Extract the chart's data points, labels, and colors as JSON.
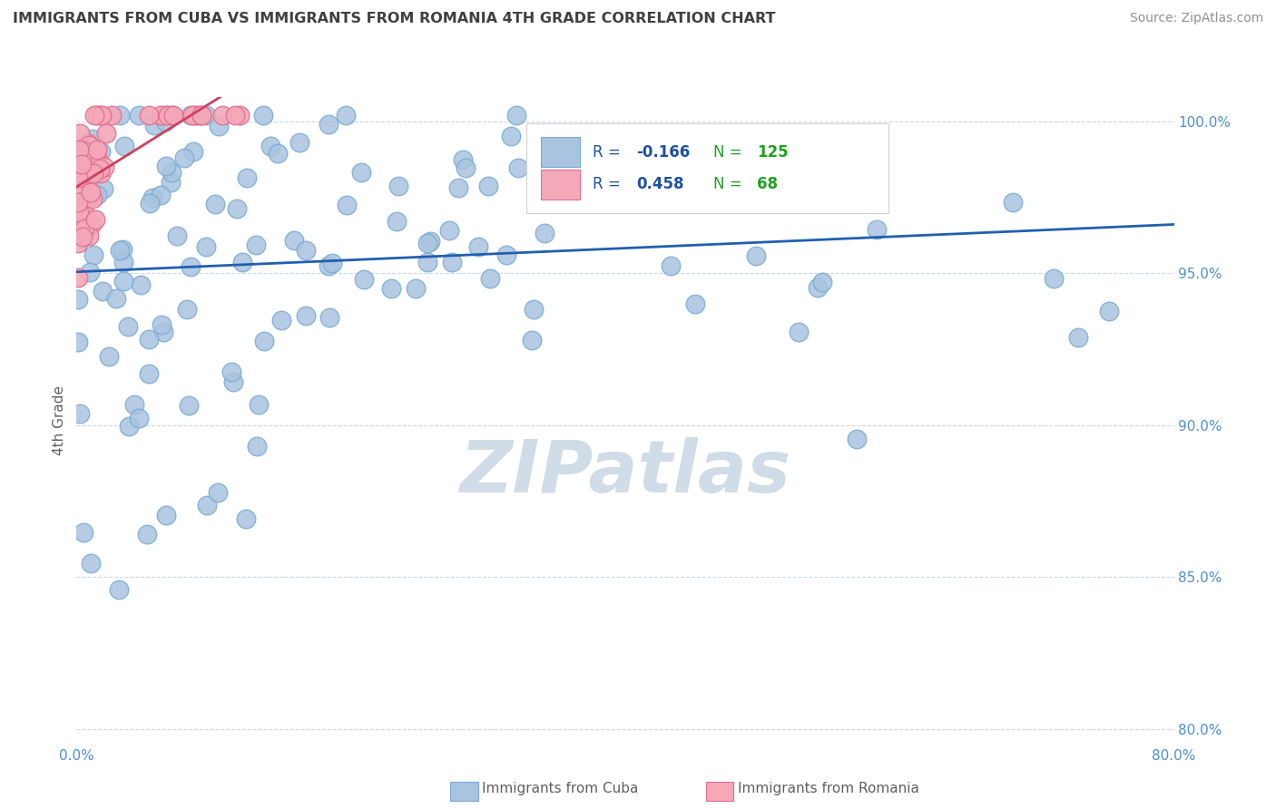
{
  "title": "IMMIGRANTS FROM CUBA VS IMMIGRANTS FROM ROMANIA 4TH GRADE CORRELATION CHART",
  "source": "Source: ZipAtlas.com",
  "xlabel_cuba": "Immigrants from Cuba",
  "xlabel_romania": "Immigrants from Romania",
  "ylabel": "4th Grade",
  "watermark": "ZIPatlas",
  "xlim": [
    0.0,
    0.8
  ],
  "ylim": [
    0.795,
    1.008
  ],
  "xticks": [
    0.0,
    0.1,
    0.2,
    0.3,
    0.4,
    0.5,
    0.6,
    0.7,
    0.8
  ],
  "xticklabels": [
    "0.0%",
    "",
    "",
    "",
    "",
    "",
    "",
    "",
    "80.0%"
  ],
  "yticks": [
    0.8,
    0.85,
    0.9,
    0.95,
    1.0
  ],
  "yticklabels": [
    "80.0%",
    "85.0%",
    "90.0%",
    "95.0%",
    "100.0%"
  ],
  "cuba_color": "#a8c4e0",
  "cuba_edge_color": "#7baad4",
  "romania_color": "#f4a8b8",
  "romania_edge_color": "#e07090",
  "trend_cuba_color": "#2060b0",
  "trend_romania_color": "#d04060",
  "legend_r_cuba": "-0.166",
  "legend_n_cuba": "125",
  "legend_r_romania": "0.458",
  "legend_n_romania": "68",
  "r_color": "#2050a0",
  "n_color": "#20a020",
  "background_color": "#ffffff",
  "grid_color": "#c8d8f0",
  "title_color": "#404040",
  "source_color": "#909090",
  "ylabel_color": "#606060",
  "watermark_color": "#d0dce8",
  "tick_color": "#5090d0"
}
